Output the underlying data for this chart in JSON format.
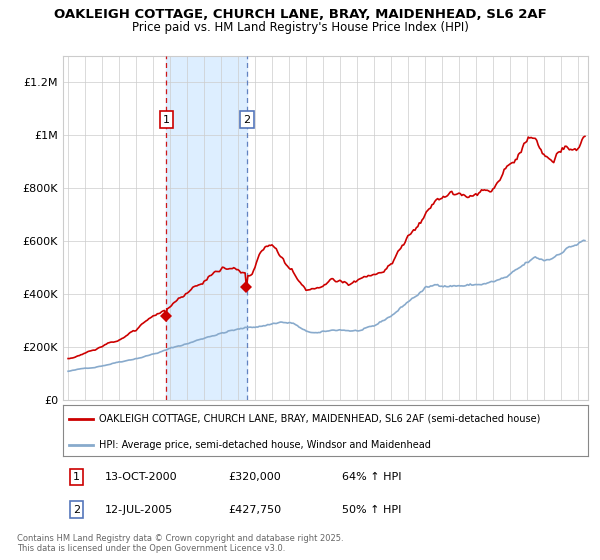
{
  "title_line1": "OAKLEIGH COTTAGE, CHURCH LANE, BRAY, MAIDENHEAD, SL6 2AF",
  "title_line2": "Price paid vs. HM Land Registry's House Price Index (HPI)",
  "ylabel_ticks": [
    "£0",
    "£200K",
    "£400K",
    "£600K",
    "£800K",
    "£1M",
    "£1.2M"
  ],
  "ytick_values": [
    0,
    200000,
    400000,
    600000,
    800000,
    1000000,
    1200000
  ],
  "ylim": [
    0,
    1300000
  ],
  "sale1_date": "13-OCT-2000",
  "sale1_price": 320000,
  "sale1_pct": "64%",
  "sale2_date": "12-JUL-2005",
  "sale2_price": 427750,
  "sale2_pct": "50%",
  "legend_line1": "OAKLEIGH COTTAGE, CHURCH LANE, BRAY, MAIDENHEAD, SL6 2AF (semi-detached house)",
  "legend_line2": "HPI: Average price, semi-detached house, Windsor and Maidenhead",
  "footer": "Contains HM Land Registry data © Crown copyright and database right 2025.\nThis data is licensed under the Open Government Licence v3.0.",
  "red": "#cc0000",
  "blue": "#88aacc",
  "highlight": "#ddeeff",
  "gridcolor": "#cccccc",
  "sale1_x": 2000.79,
  "sale2_x": 2005.53,
  "xmin": 1994.7,
  "xmax": 2025.6
}
